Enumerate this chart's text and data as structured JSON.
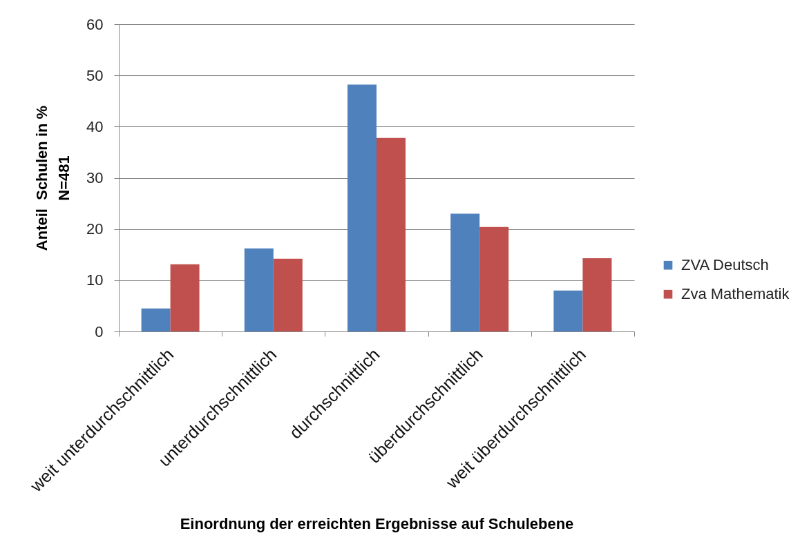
{
  "chart_data": {
    "type": "bar",
    "xlabel": "Einordnung der erreichten Ergebnisse auf Schulebene",
    "ylabel": "Anteil  Schulen in %\nN=481",
    "categories": [
      "weit unterdurchschnittlich",
      "unterdurchschnittlich",
      "durchschnittlich",
      "überdurchschnittlich",
      "weit überdurchschnittlich"
    ],
    "series": [
      {
        "name": "ZVA Deutsch",
        "color": "#4f81bd",
        "values": [
          4.5,
          16.2,
          48.2,
          23.0,
          8.0
        ]
      },
      {
        "name": "Zva Mathematik",
        "color": "#c0504d",
        "values": [
          13.1,
          14.2,
          37.8,
          20.4,
          14.3
        ]
      }
    ],
    "ylim": [
      0,
      60
    ],
    "yticks": [
      0,
      10,
      20,
      30,
      40,
      50,
      60
    ],
    "grid": "y",
    "legend": "right"
  }
}
